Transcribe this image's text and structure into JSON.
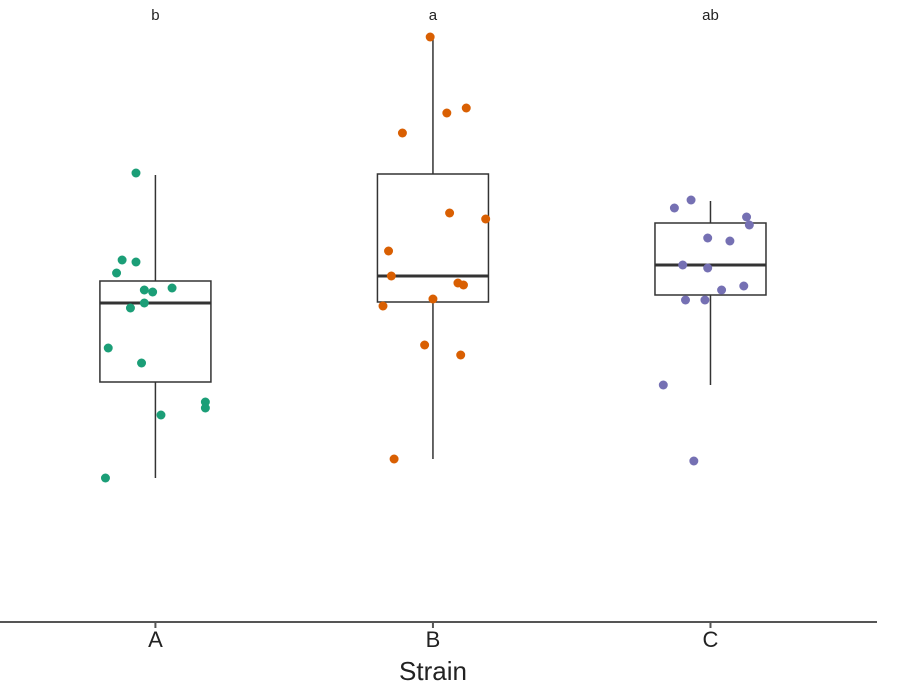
{
  "chart_data": {
    "type": "box",
    "xlabel": "Strain",
    "categories": [
      "A",
      "B",
      "C"
    ],
    "annotations": [
      "b",
      "a",
      "ab"
    ],
    "xlim": [
      0.44,
      3.6
    ],
    "ylim": [
      0,
      620
    ],
    "boxes": [
      {
        "whislo": 142,
        "q1": 238,
        "med": 317,
        "q3": 339,
        "whishi": 445
      },
      {
        "whislo": 161,
        "q1": 318,
        "med": 344,
        "q3": 446,
        "whishi": 582
      },
      {
        "whislo": 235,
        "q1": 325,
        "med": 355,
        "q3": 397,
        "whishi": 419
      }
    ],
    "points": [
      {
        "color": "#1b9e77",
        "x": [
          0.93,
          0.88,
          0.93,
          0.86,
          0.96,
          0.99,
          1.06,
          0.96,
          0.91,
          0.83,
          0.95,
          1.02,
          1.18,
          1.18,
          0.82
        ],
        "y": [
          447,
          360,
          358,
          347,
          330,
          328,
          332,
          317,
          312,
          272,
          257,
          205,
          218,
          212,
          142
        ]
      },
      {
        "color": "#d95f02",
        "x": [
          1.99,
          2.12,
          2.05,
          1.89,
          2.06,
          2.19,
          1.84,
          1.85,
          2.09,
          2.11,
          2.0,
          1.82,
          1.97,
          2.1,
          1.86
        ],
        "y": [
          583,
          512,
          507,
          487,
          407,
          401,
          369,
          344,
          337,
          335,
          321,
          314,
          275,
          265,
          161
        ]
      },
      {
        "color": "#7570b3",
        "x": [
          2.93,
          2.87,
          3.13,
          3.14,
          2.99,
          3.07,
          2.9,
          2.99,
          3.12,
          3.04,
          2.91,
          2.98,
          2.83,
          2.94
        ],
        "y": [
          420,
          412,
          403,
          395,
          382,
          379,
          355,
          352,
          334,
          330,
          320,
          320,
          235,
          159
        ]
      }
    ]
  }
}
